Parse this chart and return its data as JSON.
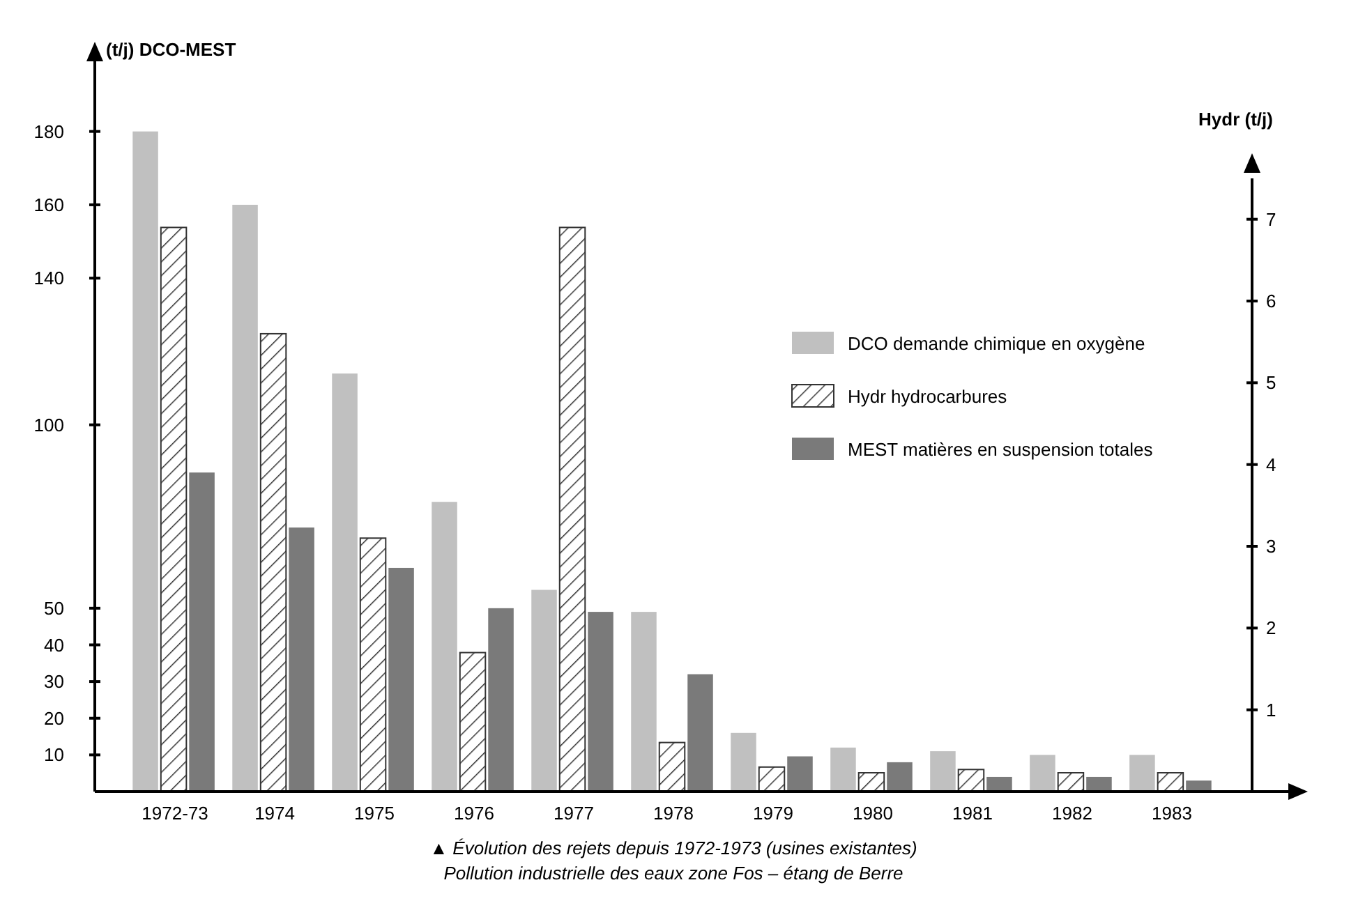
{
  "chart_data": {
    "type": "bar",
    "categories": [
      "1972-73",
      "1974",
      "1975",
      "1976",
      "1977",
      "1978",
      "1979",
      "1980",
      "1981",
      "1982",
      "1983"
    ],
    "ylabel": "(t/j) DCO-MEST",
    "y2label": "Hydr (t/j)",
    "ylim": [
      0,
      190
    ],
    "yticks": [
      10,
      20,
      30,
      40,
      50,
      100,
      140,
      160,
      180
    ],
    "y2lim": [
      0,
      7.5
    ],
    "y2ticks": [
      1,
      2,
      3,
      4,
      5,
      6,
      7
    ],
    "legend": "right",
    "grid": false,
    "series": [
      {
        "name": "DCO demande chimique en oxygène",
        "color": "#c0c0c0",
        "values": [
          180,
          160,
          114,
          79,
          55,
          49,
          16,
          12,
          11,
          10,
          10
        ]
      },
      {
        "name": "Hydr hydrocarbures",
        "color": "#333333",
        "axis": "y2",
        "values": [
          6.9,
          5.6,
          3.1,
          1.7,
          6.9,
          0.6,
          0.3,
          0.23,
          0.27,
          0.23,
          0.23
        ]
      },
      {
        "name": "MEST matières en suspension totales",
        "color": "#7a7a7a",
        "values": [
          87,
          72,
          61,
          50,
          49,
          32,
          9.6,
          8,
          4,
          4,
          3
        ]
      }
    ],
    "annotations": [
      "▲ Évolution des rejets depuis 1972-1973 (usines existantes)",
      "Pollution industrielle des eaux zone Fos – étang de Berre"
    ]
  }
}
